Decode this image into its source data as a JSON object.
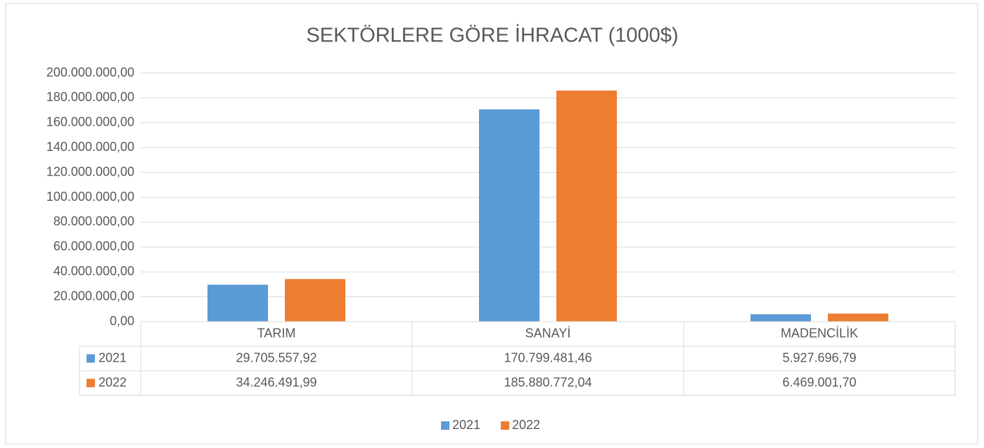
{
  "chart_data": {
    "type": "bar",
    "title": "SEKTÖRLERE GÖRE İHRACAT (1000$)",
    "categories": [
      "TARIM",
      "SANAYİ",
      "MADENCİLİK"
    ],
    "series": [
      {
        "name": "2021",
        "color": "#5b9bd5",
        "values": [
          29705557.92,
          170799481.46,
          5927696.79
        ],
        "value_labels": [
          "29.705.557,92",
          "170.799.481,46",
          "5.927.696,79"
        ]
      },
      {
        "name": "2022",
        "color": "#ed7d31",
        "values": [
          34246491.99,
          185880772.04,
          6469001.7
        ],
        "value_labels": [
          "34.246.491,99",
          "185.880.772,04",
          "6.469.001,70"
        ]
      }
    ],
    "ylim": [
      0,
      200000000
    ],
    "yticks": [
      {
        "value": 0,
        "label": "0,00"
      },
      {
        "value": 20000000,
        "label": "20.000.000,00"
      },
      {
        "value": 40000000,
        "label": "40.000.000,00"
      },
      {
        "value": 60000000,
        "label": "60.000.000,00"
      },
      {
        "value": 80000000,
        "label": "80.000.000,00"
      },
      {
        "value": 100000000,
        "label": "100.000.000,00"
      },
      {
        "value": 120000000,
        "label": "120.000.000,00"
      },
      {
        "value": 140000000,
        "label": "140.000.000,00"
      },
      {
        "value": 160000000,
        "label": "160.000.000,00"
      },
      {
        "value": 180000000,
        "label": "180.000.000,00"
      },
      {
        "value": 200000000,
        "label": "200.000.000,00"
      }
    ],
    "grid": true,
    "legend": "bottom"
  }
}
